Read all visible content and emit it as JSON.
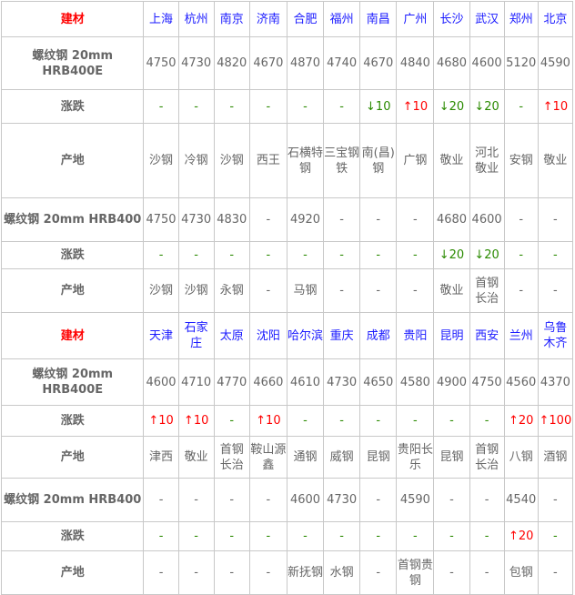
{
  "row_labels": {
    "material": "建材",
    "spec_e": "螺纹钢 20mm HRB400E",
    "spec": "螺纹钢 20mm HRB400",
    "change": "涨跌",
    "origin": "产地"
  },
  "colors": {
    "header_label": "#ff0000",
    "city": "#1a1aff",
    "up": "#ff0000",
    "down": "#2a8a00",
    "text": "#666666",
    "border": "#c8c8c8"
  },
  "blocks": [
    {
      "cities": [
        "上海",
        "杭州",
        "南京",
        "济南",
        "合肥",
        "福州",
        "南昌",
        "广州",
        "长沙",
        "武汉",
        "郑州",
        "北京"
      ],
      "hrb400e_price": [
        "4750",
        "4730",
        "4820",
        "4670",
        "4870",
        "4740",
        "4670",
        "4840",
        "4680",
        "4600",
        "5120",
        "4590"
      ],
      "hrb400e_change": [
        "-",
        "-",
        "-",
        "-",
        "-",
        "-",
        "↓10",
        "↑10",
        "↓20",
        "↓20",
        "-",
        "↑10"
      ],
      "hrb400e_origin": [
        "沙钢",
        "冷钢",
        "沙钢",
        "西王",
        "石横特钢",
        "三宝钢铁",
        "南(昌)钢",
        "广钢",
        "敬业",
        "河北敬业",
        "安钢",
        "敬业"
      ],
      "hrb400_price": [
        "4750",
        "4730",
        "4830",
        "-",
        "4920",
        "-",
        "-",
        "-",
        "4680",
        "4600",
        "-",
        "-"
      ],
      "hrb400_change": [
        "-",
        "-",
        "-",
        "-",
        "-",
        "-",
        "-",
        "-",
        "↓20",
        "↓20",
        "-",
        "-"
      ],
      "hrb400_origin": [
        "沙钢",
        "沙钢",
        "永钢",
        "-",
        "马钢",
        "-",
        "-",
        "-",
        "敬业",
        "首钢长治",
        "-",
        "-"
      ]
    },
    {
      "cities": [
        "天津",
        "石家庄",
        "太原",
        "沈阳",
        "哈尔滨",
        "重庆",
        "成都",
        "贵阳",
        "昆明",
        "西安",
        "兰州",
        "乌鲁木齐"
      ],
      "hrb400e_price": [
        "4600",
        "4710",
        "4770",
        "4660",
        "4610",
        "4730",
        "4650",
        "4580",
        "4900",
        "4750",
        "4560",
        "4370"
      ],
      "hrb400e_change": [
        "↑10",
        "↑10",
        "-",
        "↑10",
        "-",
        "-",
        "-",
        "-",
        "-",
        "-",
        "↑20",
        "↑100"
      ],
      "hrb400e_origin": [
        "津西",
        "敬业",
        "首钢长治",
        "鞍山源鑫",
        "通钢",
        "威钢",
        "昆钢",
        "贵阳长乐",
        "昆钢",
        "首钢长治",
        "八钢",
        "酒钢"
      ],
      "hrb400_price": [
        "-",
        "-",
        "-",
        "-",
        "4600",
        "4730",
        "-",
        "4590",
        "-",
        "-",
        "4540",
        "-"
      ],
      "hrb400_change": [
        "-",
        "-",
        "-",
        "-",
        "-",
        "-",
        "-",
        "-",
        "-",
        "-",
        "↑20",
        "-"
      ],
      "hrb400_origin": [
        "-",
        "-",
        "-",
        "-",
        "新抚钢",
        "水钢",
        "-",
        "首钢贵钢",
        "-",
        "-",
        "包钢",
        "-"
      ]
    }
  ]
}
